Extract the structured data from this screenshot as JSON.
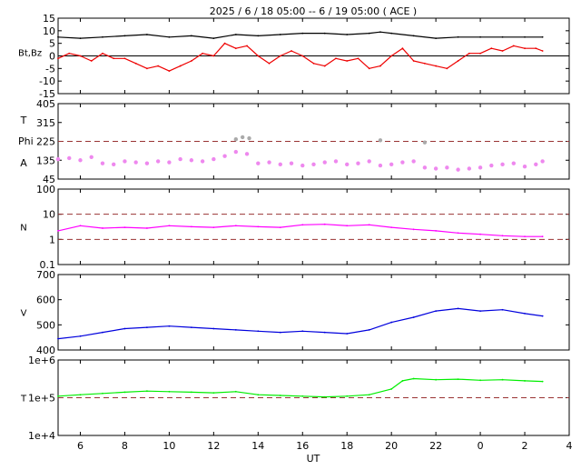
{
  "title": "2025  /  6 / 18   05:00 --  6 / 19   05:00 ( ACE )",
  "colors": {
    "bt": "#000000",
    "bz": "#ee0000",
    "phi": "#aaaaaa",
    "theta": "#ee88ee",
    "density": "#ff00ff",
    "speed": "#0000dd",
    "temperature": "#00ee00",
    "dashed": "#993333"
  },
  "chart_data": [
    {
      "panel": "magnetic-field",
      "type": "line",
      "ylabel": "Bt,Bz",
      "ylim": [
        -15,
        15
      ],
      "yticks": [
        "15",
        "10",
        "5",
        "0",
        "-5",
        "-10",
        "-15"
      ],
      "reference_line": 0,
      "xticks": [
        "6",
        "8",
        "10",
        "12",
        "14",
        "16",
        "18",
        "20",
        "22",
        "0",
        "2",
        "4"
      ],
      "series": [
        {
          "key": "bt",
          "x": [
            5.0,
            6.0,
            7.0,
            8.0,
            9.0,
            10.0,
            11.0,
            12.0,
            13.0,
            14.0,
            15.0,
            16.0,
            17.0,
            18.0,
            19.0,
            19.5,
            20.0,
            21.0,
            22.0,
            23.0,
            24.0,
            25.0,
            26.0,
            26.8
          ],
          "y": [
            7.5,
            7.0,
            7.5,
            8.0,
            8.5,
            7.5,
            8.0,
            7.0,
            8.5,
            8.0,
            8.5,
            9.0,
            9.0,
            8.5,
            9.0,
            9.5,
            9.0,
            8.0,
            7.0,
            7.5,
            7.5,
            7.5,
            7.5,
            7.5
          ]
        },
        {
          "key": "bz",
          "x": [
            5.0,
            5.5,
            6.0,
            6.5,
            7.0,
            7.5,
            8.0,
            8.5,
            9.0,
            9.5,
            10.0,
            10.5,
            11.0,
            11.5,
            12.0,
            12.5,
            13.0,
            13.5,
            14.0,
            14.5,
            15.0,
            15.5,
            16.0,
            16.5,
            17.0,
            17.5,
            18.0,
            18.5,
            19.0,
            19.5,
            20.0,
            20.5,
            21.0,
            21.5,
            22.0,
            22.5,
            23.0,
            23.5,
            24.0,
            24.5,
            25.0,
            25.5,
            26.0,
            26.5,
            26.8
          ],
          "y": [
            -1,
            1,
            0,
            -2,
            1,
            -1,
            -1,
            -3,
            -5,
            -4,
            -6,
            -4,
            -2,
            1,
            0,
            5,
            3,
            4,
            0,
            -3,
            0,
            2,
            0,
            -3,
            -4,
            -1,
            -2,
            -1,
            -5,
            -4,
            0,
            3,
            -2,
            -3,
            -4,
            -5,
            -2,
            1,
            1,
            3,
            2,
            4,
            3,
            3,
            2
          ]
        }
      ]
    },
    {
      "panel": "angles",
      "type": "scatter",
      "ylabels": [
        "T",
        "Phi",
        "A"
      ],
      "ylim": [
        45,
        405
      ],
      "yticks": [
        "405",
        "315",
        "225",
        "135",
        "45"
      ],
      "reference_line": 225,
      "series": [
        {
          "key": "phi",
          "x": [
            13.0,
            13.3,
            13.6,
            19.5,
            21.5
          ],
          "y": [
            235,
            245,
            240,
            230,
            220
          ]
        },
        {
          "key": "theta",
          "x": [
            5.0,
            5.5,
            6.0,
            6.5,
            7.0,
            7.5,
            8.0,
            8.5,
            9.0,
            9.5,
            10.0,
            10.5,
            11.0,
            11.5,
            12.0,
            12.5,
            13.0,
            13.5,
            14.0,
            14.5,
            15.0,
            15.5,
            16.0,
            16.5,
            17.0,
            17.5,
            18.0,
            18.5,
            19.0,
            19.5,
            20.0,
            20.5,
            21.0,
            21.5,
            22.0,
            22.5,
            23.0,
            23.5,
            24.0,
            24.5,
            25.0,
            25.5,
            26.0,
            26.5,
            26.8
          ],
          "y": [
            140,
            145,
            135,
            150,
            120,
            115,
            130,
            125,
            120,
            130,
            125,
            140,
            135,
            130,
            140,
            155,
            175,
            165,
            120,
            125,
            115,
            120,
            110,
            115,
            125,
            130,
            115,
            120,
            130,
            110,
            115,
            125,
            130,
            100,
            95,
            100,
            90,
            95,
            100,
            110,
            115,
            120,
            105,
            115,
            130
          ]
        }
      ]
    },
    {
      "panel": "density",
      "type": "line",
      "ylabel": "N",
      "scale": "log",
      "ylim": [
        0.1,
        100
      ],
      "yticks": [
        "100",
        "10",
        "1",
        "0.1"
      ],
      "reference_lines": [
        1,
        10
      ],
      "series": [
        {
          "key": "density",
          "x": [
            5.0,
            6.0,
            7.0,
            8.0,
            9.0,
            10.0,
            11.0,
            12.0,
            13.0,
            14.0,
            15.0,
            16.0,
            17.0,
            18.0,
            19.0,
            20.0,
            21.0,
            22.0,
            23.0,
            24.0,
            25.0,
            26.0,
            26.8
          ],
          "y": [
            2.2,
            3.5,
            2.8,
            3.0,
            2.8,
            3.5,
            3.2,
            3.0,
            3.5,
            3.2,
            3.0,
            3.8,
            4.0,
            3.5,
            3.8,
            3.0,
            2.5,
            2.2,
            1.8,
            1.6,
            1.4,
            1.3,
            1.3
          ]
        }
      ]
    },
    {
      "panel": "speed",
      "type": "line",
      "ylabel": "V",
      "ylim": [
        400,
        700
      ],
      "yticks": [
        "700",
        "600",
        "500",
        "400"
      ],
      "series": [
        {
          "key": "speed",
          "x": [
            5.0,
            6.0,
            7.0,
            8.0,
            9.0,
            10.0,
            11.0,
            12.0,
            13.0,
            14.0,
            15.0,
            16.0,
            17.0,
            18.0,
            19.0,
            20.0,
            21.0,
            22.0,
            23.0,
            24.0,
            25.0,
            26.0,
            26.8
          ],
          "y": [
            445,
            455,
            470,
            485,
            490,
            495,
            490,
            485,
            480,
            475,
            470,
            475,
            470,
            465,
            480,
            510,
            530,
            555,
            565,
            555,
            560,
            545,
            535
          ]
        }
      ]
    },
    {
      "panel": "temperature",
      "type": "line",
      "ylabel": "T",
      "scale": "log",
      "ylim": [
        10000,
        1000000
      ],
      "yticks": [
        "1e+6",
        "1e+5",
        "1e+4"
      ],
      "reference_line": 100000,
      "xlabel": "UT",
      "series": [
        {
          "key": "temperature",
          "x": [
            5.0,
            6.0,
            7.0,
            8.0,
            9.0,
            10.0,
            11.0,
            12.0,
            13.0,
            14.0,
            15.0,
            16.0,
            17.0,
            18.0,
            19.0,
            20.0,
            20.5,
            21.0,
            22.0,
            23.0,
            24.0,
            25.0,
            26.0,
            26.8
          ],
          "y": [
            110000,
            120000,
            130000,
            140000,
            150000,
            145000,
            140000,
            135000,
            145000,
            120000,
            115000,
            110000,
            105000,
            110000,
            120000,
            170000,
            280000,
            320000,
            300000,
            310000,
            290000,
            300000,
            280000,
            270000
          ]
        }
      ]
    }
  ]
}
